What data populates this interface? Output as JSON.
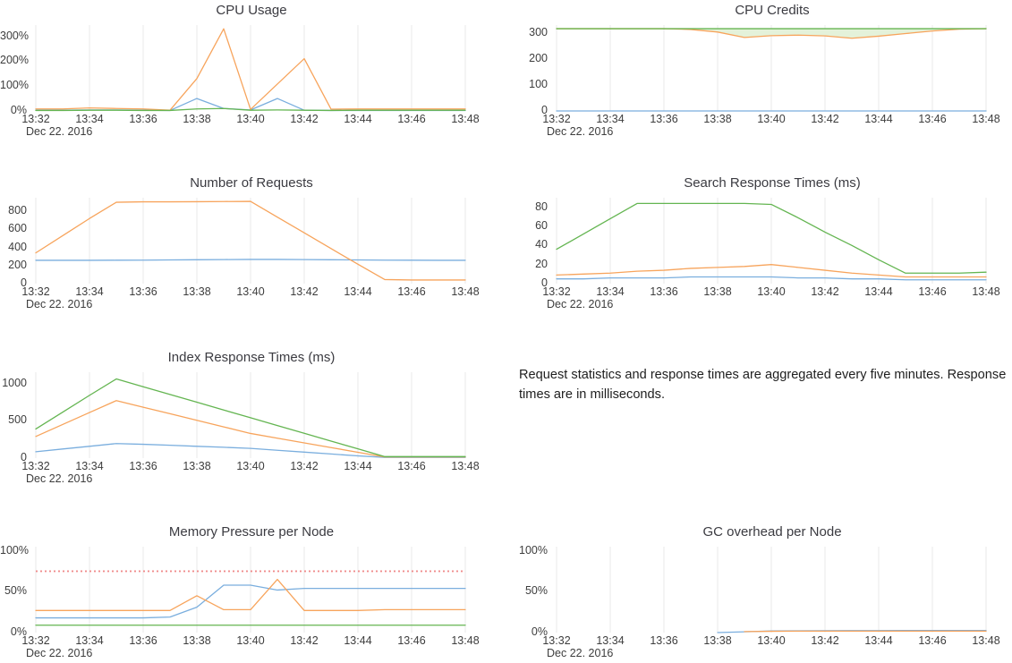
{
  "palette": {
    "blue": "#7aaede",
    "orange": "#f7a45c",
    "green": "#64b551",
    "red_threshold": "#ef8d8d",
    "grid": "#e9e9e9",
    "band_fill": "#e4f2da",
    "title_text": "#3b3b41",
    "axis_text": "#3d3d3d"
  },
  "note": {
    "text": "Request statistics and response times are aggregated every five minutes. Response times are in milliseconds."
  },
  "chart_data": [
    {
      "type": "line",
      "title": "CPU Usage",
      "xlabel": "",
      "ylabel": "",
      "x_start": "13:32",
      "x_end": "13:48",
      "x_interval_min": 1,
      "xticks": [
        "13:32",
        "13:34",
        "13:36",
        "13:38",
        "13:40",
        "13:42",
        "13:44",
        "13:46",
        "13:48"
      ],
      "xdate": "Dec 22. 2016",
      "ylim": [
        0,
        345
      ],
      "yticks": [
        {
          "value": 0,
          "label": "0%"
        },
        {
          "value": 100,
          "label": "100%"
        },
        {
          "value": 200,
          "label": "200%"
        },
        {
          "value": 300,
          "label": "300%"
        }
      ],
      "grid": "vertical",
      "legend": "none",
      "series": [
        {
          "name": "blue",
          "color": "blue",
          "values": [
            3,
            3,
            4,
            4,
            3,
            2,
            50,
            10,
            4,
            50,
            3,
            2,
            2,
            2,
            2,
            2,
            2
          ]
        },
        {
          "name": "orange",
          "color": "orange",
          "values": [
            8,
            8,
            12,
            10,
            8,
            3,
            130,
            330,
            6,
            108,
            210,
            7,
            8,
            8,
            8,
            8,
            8
          ]
        },
        {
          "name": "green",
          "color": "green",
          "values": [
            2,
            2,
            3,
            3,
            2,
            2,
            8,
            10,
            3,
            4,
            3,
            2,
            3,
            3,
            3,
            3,
            3
          ]
        }
      ]
    },
    {
      "type": "line",
      "title": "CPU Credits",
      "xlabel": "",
      "ylabel": "",
      "x_start": "13:32",
      "x_end": "13:48",
      "x_interval_min": 1,
      "xticks": [
        "13:32",
        "13:34",
        "13:36",
        "13:38",
        "13:40",
        "13:42",
        "13:44",
        "13:46",
        "13:48"
      ],
      "xdate": "Dec 22. 2016",
      "ylim": [
        0,
        332
      ],
      "yticks": [
        {
          "value": 0,
          "label": "0"
        },
        {
          "value": 100,
          "label": "100"
        },
        {
          "value": 200,
          "label": "200"
        },
        {
          "value": 300,
          "label": "300"
        }
      ],
      "grid": "vertical",
      "legend": "none",
      "band_between": {
        "upper": 2,
        "lower": 1
      },
      "series": [
        {
          "name": "blue",
          "color": "blue",
          "values": [
            0,
            0,
            0,
            0,
            0,
            0,
            0,
            0,
            0,
            0,
            0,
            0,
            0,
            0,
            0,
            0,
            0
          ]
        },
        {
          "name": "orange",
          "color": "orange",
          "values": [
            318,
            318,
            318,
            318,
            318,
            315,
            305,
            284,
            291,
            293,
            290,
            281,
            289,
            299,
            309,
            316,
            318
          ]
        },
        {
          "name": "green",
          "color": "green",
          "values": [
            318,
            318,
            318,
            318,
            318,
            318,
            318,
            318,
            318,
            318,
            318,
            318,
            318,
            318,
            318,
            318,
            318
          ]
        }
      ]
    },
    {
      "type": "line",
      "title": "Number of Requests",
      "xlabel": "",
      "ylabel": "",
      "x_start": "13:32",
      "x_end": "13:48",
      "x_interval_min": 1,
      "xticks": [
        "13:32",
        "13:34",
        "13:36",
        "13:38",
        "13:40",
        "13:42",
        "13:44",
        "13:46",
        "13:48"
      ],
      "xdate": "Dec 22. 2016",
      "ylim": [
        0,
        950
      ],
      "yticks": [
        {
          "value": 0,
          "label": "0"
        },
        {
          "value": 200,
          "label": "200"
        },
        {
          "value": 400,
          "label": "400"
        },
        {
          "value": 600,
          "label": "600"
        },
        {
          "value": 800,
          "label": "800"
        }
      ],
      "grid": "vertical",
      "legend": "none",
      "series": [
        {
          "name": "blue",
          "color": "blue",
          "values": [
            258,
            258,
            258,
            259,
            260,
            262,
            264,
            266,
            268,
            268,
            266,
            264,
            262,
            260,
            259,
            258,
            258
          ]
        },
        {
          "name": "orange",
          "color": "orange",
          "values": [
            340,
            530,
            720,
            900,
            905,
            905,
            906,
            908,
            910,
            736,
            562,
            388,
            214,
            45,
            40,
            40,
            40
          ]
        }
      ]
    },
    {
      "type": "line",
      "title": "Search Response Times (ms)",
      "xlabel": "",
      "ylabel": "",
      "x_start": "13:32",
      "x_end": "13:48",
      "x_interval_min": 1,
      "xticks": [
        "13:32",
        "13:34",
        "13:36",
        "13:38",
        "13:40",
        "13:42",
        "13:44",
        "13:46",
        "13:48"
      ],
      "xdate": "Dec 22. 2016",
      "ylim": [
        0,
        90
      ],
      "yticks": [
        {
          "value": 0,
          "label": "0"
        },
        {
          "value": 20,
          "label": "20"
        },
        {
          "value": 40,
          "label": "40"
        },
        {
          "value": 60,
          "label": "60"
        },
        {
          "value": 80,
          "label": "80"
        }
      ],
      "grid": "vertical",
      "legend": "none",
      "series": [
        {
          "name": "blue",
          "color": "blue",
          "values": [
            5,
            5,
            6,
            6,
            6,
            7,
            7,
            7,
            7,
            6,
            6,
            5,
            5,
            4,
            4,
            4,
            4
          ]
        },
        {
          "name": "orange",
          "color": "orange",
          "values": [
            9,
            10,
            11,
            13,
            14,
            16,
            17,
            18,
            20,
            17,
            14,
            11,
            9,
            7,
            7,
            7,
            7
          ]
        },
        {
          "name": "green",
          "color": "green",
          "values": [
            36,
            52,
            68,
            84,
            84,
            84,
            84,
            84,
            83,
            69,
            54,
            40,
            25,
            11,
            11,
            11,
            12
          ]
        }
      ]
    },
    {
      "type": "line",
      "title": "Index Response Times (ms)",
      "xlabel": "",
      "ylabel": "",
      "x_start": "13:32",
      "x_end": "13:48",
      "x_interval_min": 1,
      "xticks": [
        "13:32",
        "13:34",
        "13:36",
        "13:38",
        "13:40",
        "13:42",
        "13:44",
        "13:46",
        "13:48"
      ],
      "xdate": "Dec 22. 2016",
      "ylim": [
        0,
        1150
      ],
      "yticks": [
        {
          "value": 0,
          "label": "0"
        },
        {
          "value": 500,
          "label": "500"
        },
        {
          "value": 1000,
          "label": "1000"
        }
      ],
      "grid": "vertical",
      "legend": "none",
      "series": [
        {
          "name": "blue",
          "color": "blue",
          "values": [
            85,
            122,
            158,
            195,
            185,
            172,
            158,
            145,
            130,
            105,
            80,
            55,
            30,
            10,
            10,
            10,
            10
          ]
        },
        {
          "name": "orange",
          "color": "orange",
          "values": [
            290,
            450,
            610,
            770,
            682,
            594,
            506,
            418,
            330,
            267,
            204,
            141,
            78,
            15,
            15,
            15,
            15
          ]
        },
        {
          "name": "green",
          "color": "green",
          "values": [
            390,
            615,
            840,
            1060,
            956,
            852,
            748,
            644,
            540,
            436,
            332,
            228,
            124,
            20,
            20,
            20,
            20
          ]
        }
      ]
    },
    {
      "type": "line",
      "title": "Memory Pressure per Node",
      "xlabel": "",
      "ylabel": "",
      "x_start": "13:32",
      "x_end": "13:48",
      "x_interval_min": 1,
      "xticks": [
        "13:32",
        "13:34",
        "13:36",
        "13:38",
        "13:40",
        "13:42",
        "13:44",
        "13:46",
        "13:48"
      ],
      "xdate": "Dec 22. 2016",
      "ylim": [
        0,
        105
      ],
      "yticks": [
        {
          "value": 0,
          "label": "0%"
        },
        {
          "value": 50,
          "label": "50%"
        },
        {
          "value": 100,
          "label": "100%"
        }
      ],
      "grid": "vertical",
      "legend": "none",
      "threshold": {
        "value": 75,
        "style": "dotted",
        "color": "red_threshold"
      },
      "series": [
        {
          "name": "blue",
          "color": "blue",
          "values": [
            18,
            18,
            18,
            18,
            18,
            19,
            31,
            58,
            58,
            52,
            54,
            54,
            54,
            54,
            54,
            54,
            54
          ]
        },
        {
          "name": "orange",
          "color": "orange",
          "values": [
            27,
            27,
            27,
            27,
            27,
            27,
            45,
            28,
            28,
            65,
            27,
            27,
            27,
            28,
            28,
            28,
            28
          ]
        },
        {
          "name": "green",
          "color": "green",
          "values": [
            9,
            9,
            9,
            9,
            9,
            9,
            9,
            9,
            9,
            9,
            9,
            9,
            9,
            9,
            9,
            9,
            9
          ]
        }
      ]
    },
    {
      "type": "line",
      "title": "GC overhead per Node",
      "xlabel": "",
      "ylabel": "",
      "x_start": "13:32",
      "x_end": "13:48",
      "x_interval_min": 1,
      "xticks": [
        "13:32",
        "13:34",
        "13:36",
        "13:38",
        "13:40",
        "13:42",
        "13:44",
        "13:46",
        "13:48"
      ],
      "xdate": "Dec 22. 2016",
      "ylim": [
        0,
        105
      ],
      "yticks": [
        {
          "value": 0,
          "label": "0%"
        },
        {
          "value": 50,
          "label": "50%"
        },
        {
          "value": 100,
          "label": "100%"
        }
      ],
      "grid": "vertical",
      "legend": "none",
      "series": [
        {
          "name": "blue",
          "color": "blue",
          "values": [
            null,
            null,
            null,
            null,
            null,
            null,
            0,
            1,
            2,
            2.2,
            2.3,
            2.4,
            2.4,
            2.5,
            2.5,
            2.5,
            2.5
          ]
        },
        {
          "name": "orange",
          "color": "orange",
          "values": [
            null,
            null,
            null,
            null,
            null,
            null,
            null,
            1.2,
            1.6,
            1.8,
            1.8,
            1.8,
            1.8,
            1.8,
            1.8,
            1.8,
            1.8
          ]
        }
      ]
    }
  ]
}
